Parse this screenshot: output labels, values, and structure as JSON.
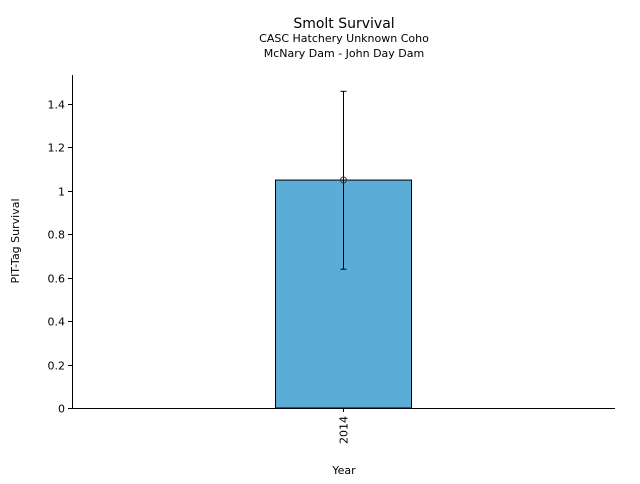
{
  "chart_data": {
    "type": "bar",
    "title": "Smolt Survival",
    "subtitle": [
      "CASC Hatchery Unknown Coho",
      "McNary Dam - John Day Dam"
    ],
    "xlabel": "Year",
    "ylabel": "PIT-Tag Survival",
    "categories": [
      "2014"
    ],
    "values": [
      1.048
    ],
    "error_low": [
      0.638
    ],
    "error_high": [
      1.456
    ],
    "ylim": [
      0,
      1.52
    ],
    "yticks": [
      0,
      0.2,
      0.4,
      0.6,
      0.8,
      1,
      1.2,
      1.4
    ],
    "ytick_labels": [
      "0",
      "0.2",
      "0.4",
      "0.6",
      "0.8",
      "1",
      "1.2",
      "1.4"
    ],
    "grid": false,
    "bar_color": "#5bacd6"
  }
}
